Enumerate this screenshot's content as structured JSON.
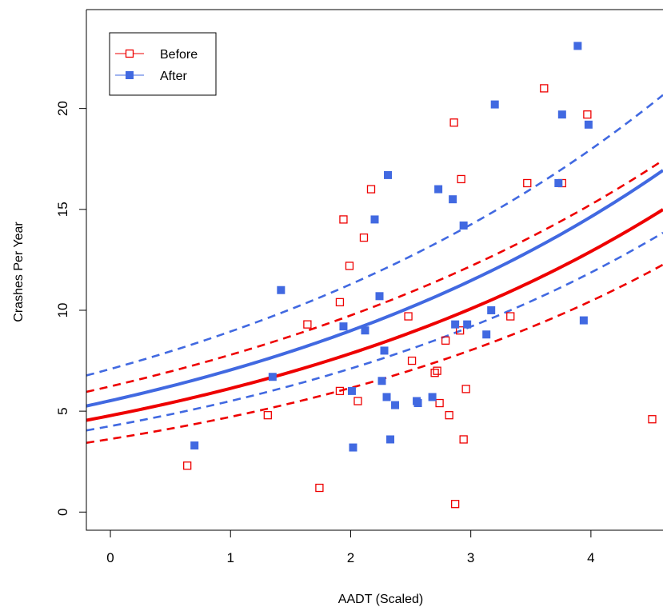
{
  "chart_data": {
    "type": "scatter",
    "xlabel": "AADT (Scaled)",
    "ylabel": "Crashes Per Year",
    "xlim": [
      -0.2,
      4.6
    ],
    "ylim": [
      -0.9,
      24.9
    ],
    "x_ticks": [
      "0",
      "1",
      "2",
      "3",
      "4"
    ],
    "y_ticks": [
      "0",
      "5",
      "10",
      "15",
      "20"
    ],
    "grid": false,
    "legend_position": "top-left",
    "colors": {
      "before": "#ee0000",
      "after": "#4169e1"
    },
    "series": [
      {
        "name": "Before",
        "marker": "open-square",
        "color": "#ee0000",
        "points": [
          [
            0.64,
            2.3
          ],
          [
            1.31,
            4.8
          ],
          [
            1.64,
            9.3
          ],
          [
            1.74,
            1.2
          ],
          [
            1.91,
            6.0
          ],
          [
            1.91,
            10.4
          ],
          [
            1.94,
            14.5
          ],
          [
            1.99,
            12.2
          ],
          [
            2.06,
            5.5
          ],
          [
            2.11,
            13.6
          ],
          [
            2.17,
            16.0
          ],
          [
            2.48,
            9.7
          ],
          [
            2.51,
            7.5
          ],
          [
            2.7,
            6.9
          ],
          [
            2.72,
            7.0
          ],
          [
            2.74,
            5.4
          ],
          [
            2.79,
            8.5
          ],
          [
            2.82,
            4.8
          ],
          [
            2.86,
            19.3
          ],
          [
            2.87,
            0.4
          ],
          [
            2.91,
            9.0
          ],
          [
            2.92,
            16.5
          ],
          [
            2.94,
            3.6
          ],
          [
            2.96,
            6.1
          ],
          [
            3.33,
            9.7
          ],
          [
            3.47,
            16.3
          ],
          [
            3.61,
            21.0
          ],
          [
            3.76,
            16.3
          ],
          [
            3.97,
            19.7
          ],
          [
            4.51,
            4.6
          ]
        ],
        "fit": {
          "a": 4.78,
          "b": 0.2485,
          "lower_a": 3.62,
          "lower_b": 0.2652,
          "upper_a": 6.23,
          "upper_b": 0.2237
        }
      },
      {
        "name": "After",
        "marker": "filled-square",
        "color": "#4169e1",
        "points": [
          [
            0.7,
            3.3
          ],
          [
            1.35,
            6.7
          ],
          [
            1.42,
            11.0
          ],
          [
            1.94,
            9.2
          ],
          [
            2.01,
            6.0
          ],
          [
            2.02,
            3.2
          ],
          [
            2.12,
            9.0
          ],
          [
            2.2,
            14.5
          ],
          [
            2.24,
            10.7
          ],
          [
            2.26,
            6.5
          ],
          [
            2.28,
            8.0
          ],
          [
            2.3,
            5.7
          ],
          [
            2.31,
            16.7
          ],
          [
            2.33,
            3.6
          ],
          [
            2.37,
            5.3
          ],
          [
            2.55,
            5.5
          ],
          [
            2.56,
            5.4
          ],
          [
            2.68,
            5.7
          ],
          [
            2.73,
            16.0
          ],
          [
            2.85,
            15.5
          ],
          [
            2.87,
            9.3
          ],
          [
            2.94,
            14.2
          ],
          [
            2.97,
            9.3
          ],
          [
            3.13,
            8.8
          ],
          [
            3.17,
            10.0
          ],
          [
            3.2,
            20.2
          ],
          [
            3.73,
            16.3
          ],
          [
            3.76,
            19.7
          ],
          [
            3.89,
            23.1
          ],
          [
            3.94,
            9.5
          ],
          [
            3.98,
            19.2
          ]
        ],
        "fit": {
          "a": 5.52,
          "b": 0.2437,
          "lower_a": 4.26,
          "lower_b": 0.2562,
          "upper_a": 7.09,
          "upper_b": 0.2326
        }
      }
    ]
  }
}
